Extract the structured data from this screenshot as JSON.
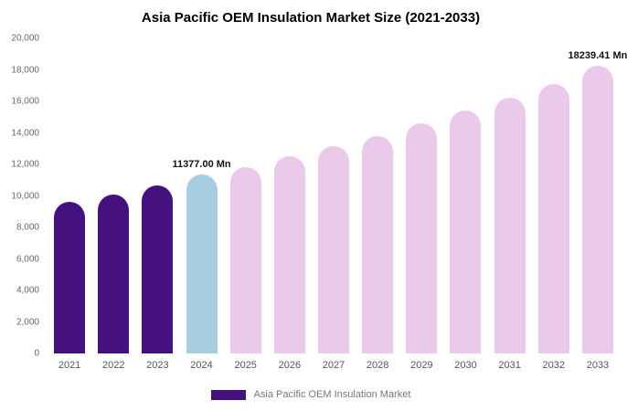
{
  "chart_data": {
    "type": "bar",
    "title": "Asia Pacific OEM Insulation Market Size (2021-2033)",
    "categories": [
      "2021",
      "2022",
      "2023",
      "2024",
      "2025",
      "2026",
      "2027",
      "2028",
      "2029",
      "2030",
      "2031",
      "2032",
      "2033"
    ],
    "values": [
      9600,
      10100,
      10650,
      11377.0,
      11850,
      12500,
      13150,
      13800,
      14600,
      15400,
      16250,
      17100,
      18239.41
    ],
    "unit": "Mn",
    "bar_colors": [
      "#45117e",
      "#45117e",
      "#45117e",
      "#a6cde0",
      "#eac9ea",
      "#eac9ea",
      "#eac9ea",
      "#eac9ea",
      "#eac9ea",
      "#eac9ea",
      "#eac9ea",
      "#eac9ea",
      "#eac9ea"
    ],
    "annotations": [
      {
        "index": 3,
        "text": "11377.00 Mn"
      },
      {
        "index": 12,
        "text": "18239.41 Mn"
      }
    ],
    "ylim": [
      0,
      20000
    ],
    "y_ticks": [
      "0",
      "2,000",
      "4,000",
      "6,000",
      "8,000",
      "10,000",
      "12,000",
      "14,000",
      "16,000",
      "18,000",
      "20,000"
    ],
    "grid": false,
    "legend": {
      "position": "bottom",
      "entries": [
        {
          "label": "Asia Pacific OEM Insulation Market",
          "color": "#45117e"
        }
      ]
    }
  }
}
